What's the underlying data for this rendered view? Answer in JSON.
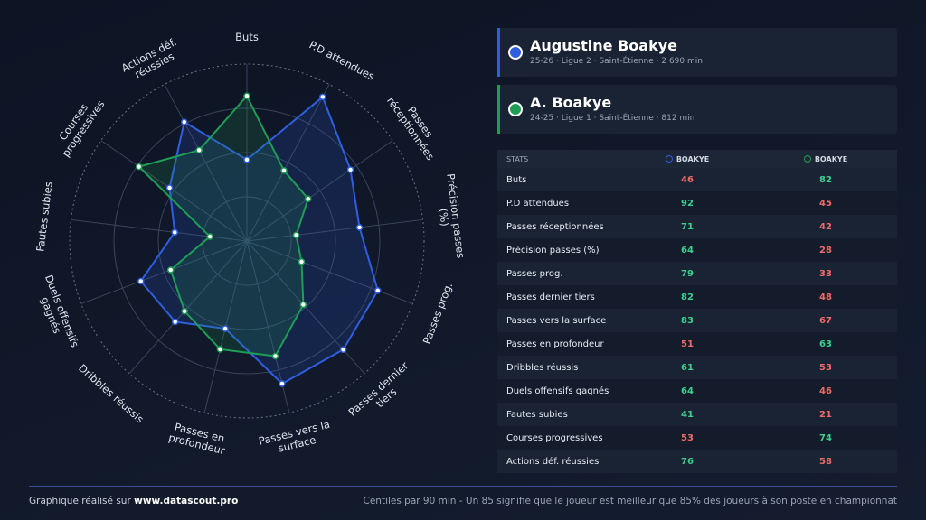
{
  "players": [
    {
      "name": "Augustine Boakye",
      "details": "25-26 · Ligue 2 · Saint-Étienne · 2 690 min"
    },
    {
      "name": "A. Boakye",
      "details": "24-25 · Ligue 1 · Saint-Étienne · 812 min"
    }
  ],
  "table": {
    "header": "STATS"
  },
  "chart_data": {
    "type": "radar",
    "categories": [
      "Buts",
      "P.D attendues",
      "Passes réceptionnées",
      "Précision passes (%)",
      "Passes prog.",
      "Passes dernier tiers",
      "Passes vers la surface",
      "Passes en profondeur",
      "Dribbles réussis",
      "Duels offensifs gagnés",
      "Fautes subies",
      "Courses progressives",
      "Actions déf. réussies"
    ],
    "series": [
      {
        "name": "BOAKYE",
        "color": "#2f5fe0",
        "values": [
          46,
          92,
          71,
          64,
          79,
          82,
          83,
          51,
          61,
          64,
          41,
          53,
          76
        ]
      },
      {
        "name": "BOAKYE",
        "color": "#1f9d55",
        "values": [
          82,
          45,
          42,
          28,
          33,
          48,
          67,
          63,
          53,
          46,
          21,
          74,
          58
        ]
      }
    ],
    "rlim": [
      0,
      100
    ],
    "rticks": [
      25,
      50,
      75,
      100
    ]
  },
  "footer": {
    "credit_prefix": "Graphique réalisé sur",
    "credit_site": "www.datascout.pro",
    "note": "Centiles par 90 min - Un 85 signifie que le joueur est meilleur que 85% des joueurs à son poste en championnat"
  }
}
